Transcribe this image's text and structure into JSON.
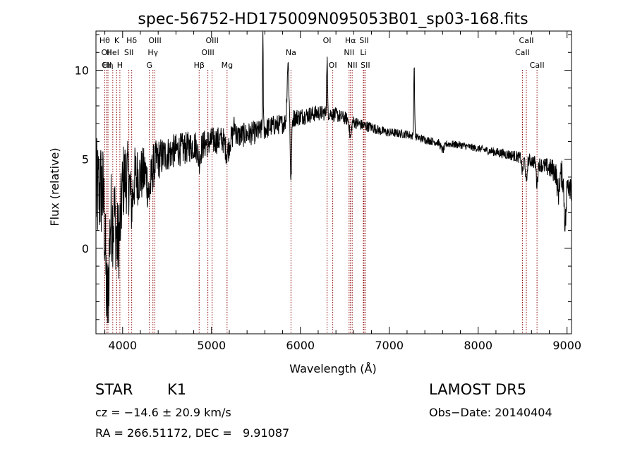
{
  "chart_data": {
    "type": "line",
    "title": "spec-56752-HD175009N095053B01_sp03-168.fits",
    "xlabel": "Wavelength (Å)",
    "ylabel": "Flux (relative)",
    "xlim": [
      3700,
      9050
    ],
    "ylim": [
      -4.8,
      12.2
    ],
    "x_ticks": [
      4000,
      5000,
      6000,
      7000,
      8000,
      9000
    ],
    "y_ticks": [
      0,
      5,
      10
    ],
    "line_color": "#000000",
    "marker_color": "#8b0000",
    "continuum": [
      [
        3700,
        3.0
      ],
      [
        3800,
        3.5
      ],
      [
        3900,
        3.8
      ],
      [
        4000,
        4.0
      ],
      [
        4100,
        4.0
      ],
      [
        4200,
        4.1
      ],
      [
        4300,
        4.3
      ],
      [
        4400,
        5.0
      ],
      [
        4500,
        5.3
      ],
      [
        4600,
        5.5
      ],
      [
        4700,
        5.6
      ],
      [
        4800,
        5.8
      ],
      [
        4900,
        5.8
      ],
      [
        5000,
        6.0
      ],
      [
        5100,
        6.1
      ],
      [
        5200,
        6.2
      ],
      [
        5300,
        6.3
      ],
      [
        5400,
        6.4
      ],
      [
        5500,
        6.5
      ],
      [
        5600,
        6.7
      ],
      [
        5700,
        6.9
      ],
      [
        5800,
        7.0
      ],
      [
        5900,
        7.3
      ],
      [
        6000,
        7.4
      ],
      [
        6100,
        7.5
      ],
      [
        6200,
        7.6
      ],
      [
        6300,
        7.6
      ],
      [
        6400,
        7.5
      ],
      [
        6500,
        7.3
      ],
      [
        6600,
        7.1
      ],
      [
        6700,
        6.9
      ],
      [
        6800,
        6.8
      ],
      [
        6900,
        6.6
      ],
      [
        7000,
        6.5
      ],
      [
        7200,
        6.4
      ],
      [
        7400,
        6.1
      ],
      [
        7600,
        5.9
      ],
      [
        7800,
        5.8
      ],
      [
        8000,
        5.6
      ],
      [
        8200,
        5.4
      ],
      [
        8400,
        5.2
      ],
      [
        8600,
        4.9
      ],
      [
        8800,
        4.5
      ],
      [
        9000,
        4.0
      ],
      [
        9050,
        3.6
      ]
    ],
    "features": [
      [
        3820,
        -3.2,
        20
      ],
      [
        3835,
        -4.0,
        20
      ],
      [
        3889,
        -2.0,
        15
      ],
      [
        3934,
        -3.0,
        18
      ],
      [
        3969,
        -2.5,
        18
      ],
      [
        4101,
        -1.5,
        15
      ],
      [
        4300,
        -1.2,
        18
      ],
      [
        4861,
        -0.8,
        15
      ],
      [
        5175,
        -0.8,
        20
      ],
      [
        5260,
        0.6,
        12
      ],
      [
        5578,
        5.0,
        4
      ],
      [
        5860,
        3.2,
        10
      ],
      [
        5894,
        -3.6,
        7
      ],
      [
        6300,
        3.0,
        5
      ],
      [
        6563,
        -1.0,
        10
      ],
      [
        7280,
        4.0,
        5
      ],
      [
        7600,
        -0.4,
        20
      ],
      [
        8498,
        -0.8,
        8
      ],
      [
        8542,
        -1.4,
        8
      ],
      [
        8662,
        -1.2,
        8
      ],
      [
        8900,
        -1.2,
        12
      ],
      [
        8980,
        -2.6,
        12
      ]
    ],
    "noise": [
      [
        3700,
        3.2
      ],
      [
        4200,
        1.6
      ],
      [
        4500,
        1.0
      ],
      [
        5000,
        0.8
      ],
      [
        6000,
        0.5
      ],
      [
        7000,
        0.25
      ],
      [
        8000,
        0.2
      ],
      [
        8700,
        0.4
      ],
      [
        9050,
        1.0
      ]
    ],
    "line_markers": [
      {
        "x": 3798,
        "labels": [
          {
            "text": "Hθ",
            "row": 0
          }
        ]
      },
      {
        "x": 3820,
        "labels": [
          {
            "text": "OII",
            "row": 1
          },
          {
            "text": "CII",
            "row": 2
          }
        ]
      },
      {
        "x": 3835,
        "labels": [
          {
            "text": "Hη",
            "row": 2
          }
        ]
      },
      {
        "x": 3889,
        "labels": [
          {
            "text": "HeI",
            "row": 1
          }
        ]
      },
      {
        "x": 3934,
        "labels": [
          {
            "text": "K",
            "row": 0
          }
        ]
      },
      {
        "x": 3969,
        "labels": [
          {
            "text": "H",
            "row": 2
          }
        ]
      },
      {
        "x": 4070,
        "labels": [
          {
            "text": "SII",
            "row": 1
          }
        ]
      },
      {
        "x": 4102,
        "labels": [
          {
            "text": "Hδ",
            "row": 0
          }
        ]
      },
      {
        "x": 4300,
        "labels": [
          {
            "text": "G",
            "row": 2
          }
        ]
      },
      {
        "x": 4341,
        "labels": [
          {
            "text": "Hγ",
            "row": 1
          }
        ]
      },
      {
        "x": 4363,
        "labels": [
          {
            "text": "OIII",
            "row": 0
          }
        ]
      },
      {
        "x": 4861,
        "labels": [
          {
            "text": "Hβ",
            "row": 2
          }
        ]
      },
      {
        "x": 4959,
        "labels": [
          {
            "text": "OIII",
            "row": 1
          }
        ]
      },
      {
        "x": 5007,
        "labels": [
          {
            "text": "OIII",
            "row": 0
          }
        ]
      },
      {
        "x": 5175,
        "labels": [
          {
            "text": "Mg",
            "row": 2
          }
        ]
      },
      {
        "x": 5894,
        "labels": [
          {
            "text": "Na",
            "row": 1
          }
        ]
      },
      {
        "x": 6300,
        "labels": [
          {
            "text": "OI",
            "row": 0
          }
        ]
      },
      {
        "x": 6364,
        "labels": [
          {
            "text": "OI",
            "row": 2
          }
        ]
      },
      {
        "x": 6548,
        "labels": [
          {
            "text": "NII",
            "row": 1
          }
        ]
      },
      {
        "x": 6563,
        "labels": [
          {
            "text": "Hα",
            "row": 0
          }
        ]
      },
      {
        "x": 6583,
        "labels": [
          {
            "text": "NII",
            "row": 2
          }
        ]
      },
      {
        "x": 6708,
        "labels": [
          {
            "text": "Li",
            "row": 1
          }
        ]
      },
      {
        "x": 6716,
        "labels": [
          {
            "text": "SII",
            "row": 0
          }
        ]
      },
      {
        "x": 6731,
        "labels": [
          {
            "text": "SII",
            "row": 2
          }
        ]
      },
      {
        "x": 8498,
        "labels": [
          {
            "text": "CaII",
            "row": 1
          }
        ]
      },
      {
        "x": 8542,
        "labels": [
          {
            "text": "CaII",
            "row": 0
          }
        ]
      },
      {
        "x": 8662,
        "labels": [
          {
            "text": "CaII",
            "row": 2
          }
        ]
      }
    ]
  },
  "footer": {
    "object_class": "STAR",
    "subclass": "K1",
    "survey": "LAMOST DR5",
    "cz": "cz = −14.6 ± 20.9 km/s",
    "obs_date": "Obs−Date: 20140404",
    "radec": "RA = 266.51172, DEC =   9.91087"
  }
}
